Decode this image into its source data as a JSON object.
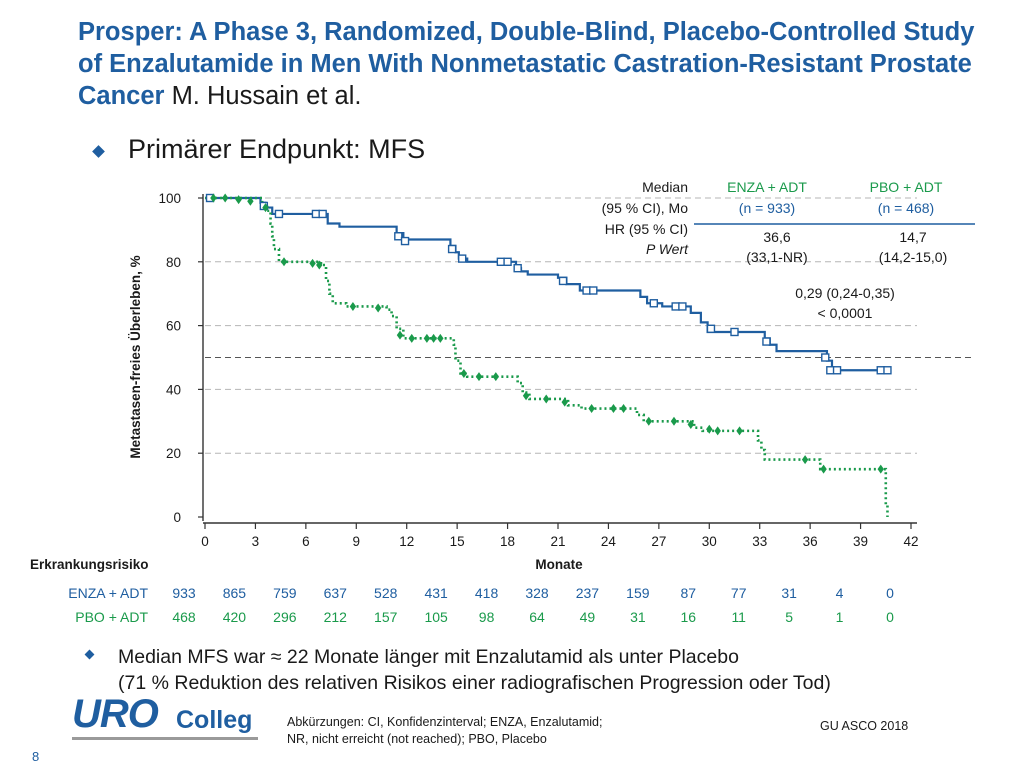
{
  "slide": {
    "title": "Prosper: A Phase 3, Randomized, Double-Blind, Placebo-Controlled Study of Enzalutamide in Men With Nonmetastatic Castration-Resistant Prostate Cancer",
    "author": "M. Hussain et al.",
    "endpoint": "Primärer Endpunkt: MFS",
    "note_line1": "Median MFS war ≈ 22 Monate länger mit Enzalutamid als unter Placebo",
    "note_line2": "(71 % Reduktion des relativen Risikos einer radiografischen Progression oder Tod)",
    "abbr_line1": "Abkürzungen: CI, Konfidenzinterval; ENZA, Enzalutamid;",
    "abbr_line2": "NR, nicht erreicht (not reached); PBO, Placebo",
    "logo_uro": "URO",
    "logo_colleg": "Colleg",
    "source": "GU ASCO 2018",
    "page_number": "8"
  },
  "colors": {
    "title": "#1f5ea0",
    "enza": "#1f5ea0",
    "pbo": "#1a9a4b",
    "axis": "#333333",
    "grid": "#aaaaaa"
  },
  "chart_data": {
    "type": "line",
    "ylabel": "Metastasen-freies Überleben, %",
    "xlabel": "Monate",
    "xlim": [
      0,
      42
    ],
    "ylim": [
      0,
      100
    ],
    "xticks": [
      0,
      3,
      6,
      9,
      12,
      15,
      18,
      21,
      24,
      27,
      30,
      33,
      36,
      39,
      42
    ],
    "yticks": [
      0,
      20,
      40,
      60,
      80,
      100
    ],
    "grid": "horizontal dashed",
    "reference_line_y": 50,
    "series": [
      {
        "name": "ENZA + ADT",
        "style": "solid",
        "marker": "open-square",
        "color": "#1f5ea0",
        "points": [
          [
            0,
            100
          ],
          [
            3.2,
            100
          ],
          [
            3.3,
            98.5
          ],
          [
            3.6,
            97
          ],
          [
            4,
            95
          ],
          [
            6.5,
            95
          ],
          [
            7.3,
            92
          ],
          [
            8,
            91
          ],
          [
            11,
            91
          ],
          [
            11.4,
            89
          ],
          [
            11.8,
            87
          ],
          [
            14.2,
            87
          ],
          [
            14.6,
            85
          ],
          [
            14.9,
            83
          ],
          [
            15.1,
            81
          ],
          [
            15.6,
            80
          ],
          [
            18.2,
            80
          ],
          [
            18.5,
            78
          ],
          [
            18.8,
            77
          ],
          [
            19.2,
            76
          ],
          [
            21,
            75
          ],
          [
            21.5,
            73
          ],
          [
            22.3,
            71
          ],
          [
            25.6,
            71
          ],
          [
            25.9,
            69
          ],
          [
            26.3,
            67
          ],
          [
            27.2,
            66
          ],
          [
            28.6,
            66
          ],
          [
            28.9,
            64
          ],
          [
            29.5,
            61
          ],
          [
            29.9,
            58
          ],
          [
            33,
            58
          ],
          [
            33.3,
            56
          ],
          [
            33.6,
            54
          ],
          [
            34,
            52
          ],
          [
            36.6,
            52
          ],
          [
            37,
            49
          ],
          [
            37.3,
            46
          ],
          [
            40.8,
            46
          ]
        ],
        "censor_marks": [
          [
            0.3,
            100
          ],
          [
            3.5,
            97.5
          ],
          [
            4.4,
            95
          ],
          [
            6.6,
            95
          ],
          [
            7,
            95
          ],
          [
            11.5,
            88
          ],
          [
            11.9,
            86.5
          ],
          [
            14.7,
            84
          ],
          [
            15.3,
            81
          ],
          [
            17.6,
            80
          ],
          [
            18,
            80
          ],
          [
            18.6,
            78
          ],
          [
            21.3,
            74
          ],
          [
            22.7,
            71
          ],
          [
            23.1,
            71
          ],
          [
            26.7,
            67
          ],
          [
            28,
            66
          ],
          [
            28.4,
            66
          ],
          [
            30.1,
            59
          ],
          [
            31.5,
            58
          ],
          [
            33.4,
            55
          ],
          [
            36.9,
            50
          ],
          [
            37.2,
            46
          ],
          [
            37.6,
            46
          ],
          [
            40.2,
            46
          ],
          [
            40.6,
            46
          ]
        ]
      },
      {
        "name": "PBO + ADT",
        "style": "dotted",
        "marker": "filled-diamond",
        "color": "#1a9a4b",
        "points": [
          [
            0,
            100
          ],
          [
            3.4,
            98
          ],
          [
            3.7,
            96
          ],
          [
            3.9,
            92
          ],
          [
            4,
            88
          ],
          [
            4.1,
            84
          ],
          [
            4.4,
            80
          ],
          [
            6.9,
            79
          ],
          [
            7.2,
            74
          ],
          [
            7.4,
            70
          ],
          [
            7.6,
            67
          ],
          [
            8.4,
            66
          ],
          [
            10.8,
            65
          ],
          [
            11.1,
            63
          ],
          [
            11.4,
            59
          ],
          [
            11.8,
            56
          ],
          [
            14.5,
            56
          ],
          [
            14.8,
            54
          ],
          [
            14.9,
            49
          ],
          [
            15.2,
            45
          ],
          [
            15.6,
            44
          ],
          [
            18.3,
            44
          ],
          [
            18.6,
            42
          ],
          [
            18.9,
            39
          ],
          [
            19.3,
            37
          ],
          [
            21.3,
            37
          ],
          [
            21.6,
            35
          ],
          [
            22.4,
            34
          ],
          [
            25.4,
            34
          ],
          [
            25.7,
            32
          ],
          [
            26.1,
            30
          ],
          [
            28.7,
            30
          ],
          [
            29.1,
            28
          ],
          [
            29.6,
            27
          ],
          [
            32.7,
            27
          ],
          [
            32.9,
            24
          ],
          [
            33.1,
            21
          ],
          [
            33.3,
            18
          ],
          [
            36.3,
            18
          ],
          [
            36.6,
            15
          ],
          [
            40.3,
            15
          ],
          [
            40.5,
            4
          ],
          [
            40.6,
            0
          ]
        ],
        "censor_marks": [
          [
            0.5,
            100
          ],
          [
            1.2,
            100
          ],
          [
            2,
            99.5
          ],
          [
            2.7,
            99
          ],
          [
            3.6,
            97
          ],
          [
            4.7,
            80
          ],
          [
            6.4,
            79.5
          ],
          [
            6.8,
            79
          ],
          [
            8.8,
            66
          ],
          [
            10.3,
            65.5
          ],
          [
            11.6,
            57
          ],
          [
            12.3,
            56
          ],
          [
            13.2,
            56
          ],
          [
            13.6,
            56
          ],
          [
            14,
            56
          ],
          [
            15.4,
            45
          ],
          [
            16.3,
            44
          ],
          [
            17.3,
            44
          ],
          [
            19.1,
            38
          ],
          [
            20.3,
            37
          ],
          [
            21.4,
            36
          ],
          [
            23,
            34
          ],
          [
            24.3,
            34
          ],
          [
            24.9,
            34
          ],
          [
            26.4,
            30
          ],
          [
            27.9,
            30
          ],
          [
            28.9,
            29
          ],
          [
            30,
            27.5
          ],
          [
            30.5,
            27
          ],
          [
            31.8,
            27
          ],
          [
            35.7,
            18
          ],
          [
            36.8,
            15
          ],
          [
            40.2,
            15
          ]
        ]
      }
    ]
  },
  "stats_table": {
    "row_labels": [
      "Median",
      "(95 % CI), Mo",
      "HR (95 % CI)",
      "P Wert"
    ],
    "enza_header": "ENZA + ADT",
    "enza_n": "(n = 933)",
    "pbo_header": "PBO + ADT",
    "pbo_n": "(n = 468)",
    "enza_median": "36,6",
    "enza_ci": "(33,1-NR)",
    "pbo_median": "14,7",
    "pbo_ci": "(14,2-15,0)",
    "hr": "0,29 (0,24-0,35)",
    "p": "< 0,0001"
  },
  "risk_table": {
    "title": "Erkrankungsrisiko",
    "rows": [
      {
        "label": "ENZA + ADT",
        "values": [
          "933",
          "865",
          "759",
          "637",
          "528",
          "431",
          "418",
          "328",
          "237",
          "159",
          "87",
          "77",
          "31",
          "4",
          "0"
        ],
        "color": "#1f5ea0"
      },
      {
        "label": "PBO + ADT",
        "values": [
          "468",
          "420",
          "296",
          "212",
          "157",
          "105",
          "98",
          "64",
          "49",
          "31",
          "16",
          "11",
          "5",
          "1",
          "0"
        ],
        "color": "#1a9a4b"
      }
    ]
  }
}
